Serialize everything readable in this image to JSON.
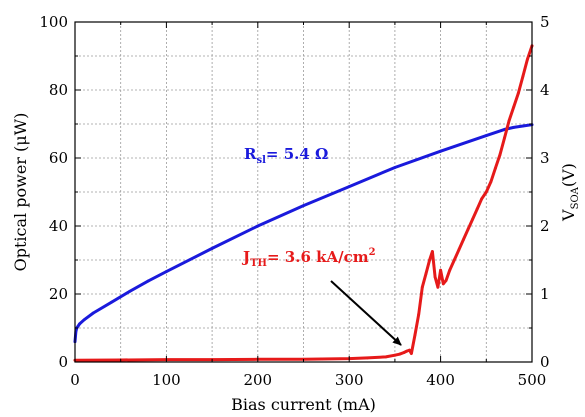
{
  "chart_data": {
    "type": "line",
    "xlabel": "Bias current (mA)",
    "ylabel": "Optical power (μW)",
    "y2label": {
      "main": "V",
      "sub": "SOA",
      "tail": "(V)"
    },
    "xlim": [
      0,
      500
    ],
    "ylim": [
      0,
      100
    ],
    "y2lim": [
      0,
      5
    ],
    "x_ticks": [
      "0",
      "100",
      "200",
      "300",
      "400",
      "500"
    ],
    "y_ticks": [
      "0",
      "20",
      "40",
      "60",
      "80",
      "100"
    ],
    "y2_ticks": [
      "0",
      "1",
      "2",
      "3",
      "4",
      "5"
    ],
    "grid": true,
    "series": [
      {
        "axis": "right",
        "color": "#1a1adc",
        "x": [
          0,
          1,
          2,
          5,
          10,
          20,
          40,
          60,
          80,
          100,
          150,
          200,
          250,
          300,
          350,
          400,
          450,
          470,
          480,
          490,
          500
        ],
        "y": [
          0.3,
          0.45,
          0.5,
          0.56,
          0.62,
          0.72,
          0.88,
          1.04,
          1.19,
          1.33,
          1.67,
          2.0,
          2.3,
          2.58,
          2.86,
          3.1,
          3.33,
          3.42,
          3.45,
          3.47,
          3.49
        ]
      },
      {
        "axis": "left",
        "color": "#e61a1a",
        "x": [
          0,
          50,
          100,
          150,
          200,
          250,
          300,
          320,
          340,
          350,
          355,
          360,
          363,
          366,
          368,
          372,
          376,
          380,
          384,
          388,
          391,
          394,
          397,
          400,
          403,
          406,
          410,
          415,
          420,
          425,
          430,
          435,
          440,
          445,
          450,
          455,
          460,
          465,
          470,
          475,
          480,
          485,
          490,
          495,
          500
        ],
        "y": [
          0.5,
          0.6,
          0.7,
          0.7,
          0.8,
          0.8,
          1.0,
          1.2,
          1.5,
          2.0,
          2.3,
          2.8,
          3.2,
          3.5,
          2.5,
          8.0,
          14.0,
          22.0,
          26.0,
          30.0,
          32.5,
          25.0,
          22.0,
          27.0,
          23.0,
          24.0,
          27.0,
          30.0,
          33.0,
          36.0,
          39.0,
          42.0,
          45.0,
          48.0,
          50.0,
          53.0,
          57.0,
          61.0,
          66.0,
          71.0,
          75.0,
          79.0,
          84.0,
          89.0,
          93.0
        ]
      }
    ],
    "annotations": {
      "rsl": {
        "main": "R",
        "sub": "sl",
        "tail": "= 5.4 Ω",
        "color": "#1a1adc"
      },
      "jth": {
        "main": "J",
        "sub": "TH",
        "tail": "= 3.6 kA/cm",
        "sup": "2",
        "color": "#e61a1a"
      }
    }
  }
}
